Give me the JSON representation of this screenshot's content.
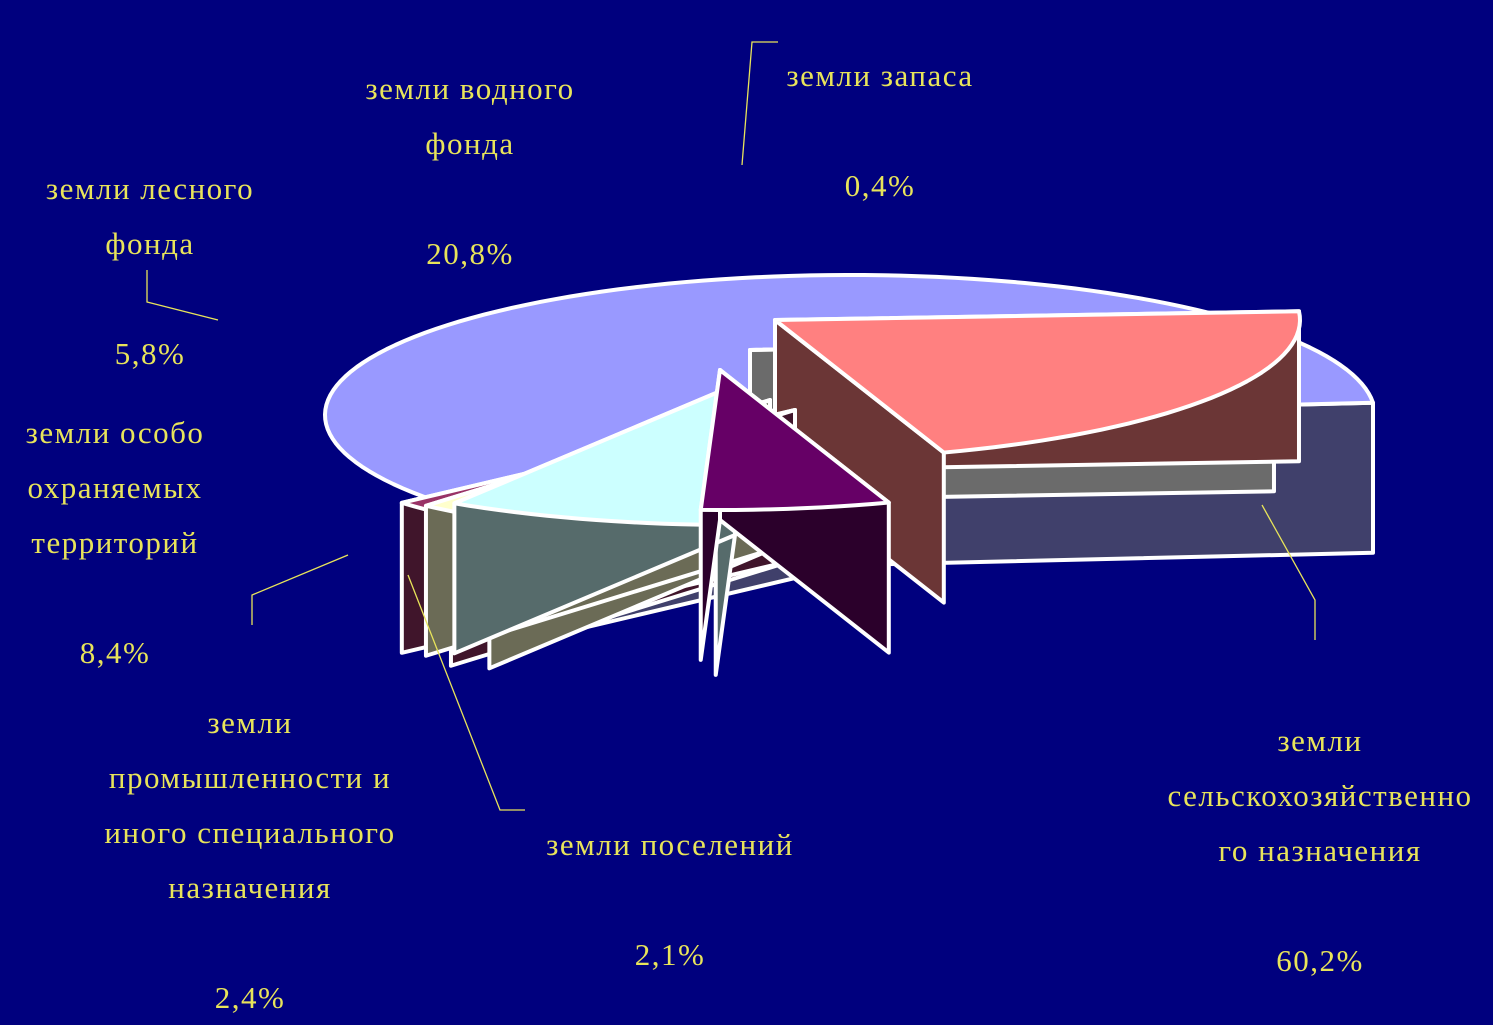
{
  "chart_data": {
    "type": "pie",
    "style": "3d-exploded",
    "slices": [
      {
        "label": "земли\nсельскохозяйственно\nго назначения",
        "value_text": "60,2%",
        "value": 60.2,
        "color": "#9999ff"
      },
      {
        "label": "земли поселений",
        "value_text": "2,1%",
        "value": 2.1,
        "color": "#993366"
      },
      {
        "label": "земли\nпромышленности и\nиного специального\nназначения",
        "value_text": "2,4%",
        "value": 2.4,
        "color": "#ffffcc"
      },
      {
        "label": "земли особо\nохраняемых\nтерриторий",
        "value_text": "8,4%",
        "value": 8.4,
        "color": "#ccffff"
      },
      {
        "label": "земли лесного\nфонда",
        "value_text": "5,8%",
        "value": 5.8,
        "color": "#660066"
      },
      {
        "label": "земли водного\nфонда",
        "value_text": "20,8%",
        "value": 20.8,
        "color": "#ff8080"
      },
      {
        "label": "земли запаса",
        "value_text": "0,4%",
        "value": 0.4,
        "color": "#ffffff"
      }
    ],
    "legend": "none",
    "label_color": "#e8e45a",
    "background": "#00007e"
  }
}
